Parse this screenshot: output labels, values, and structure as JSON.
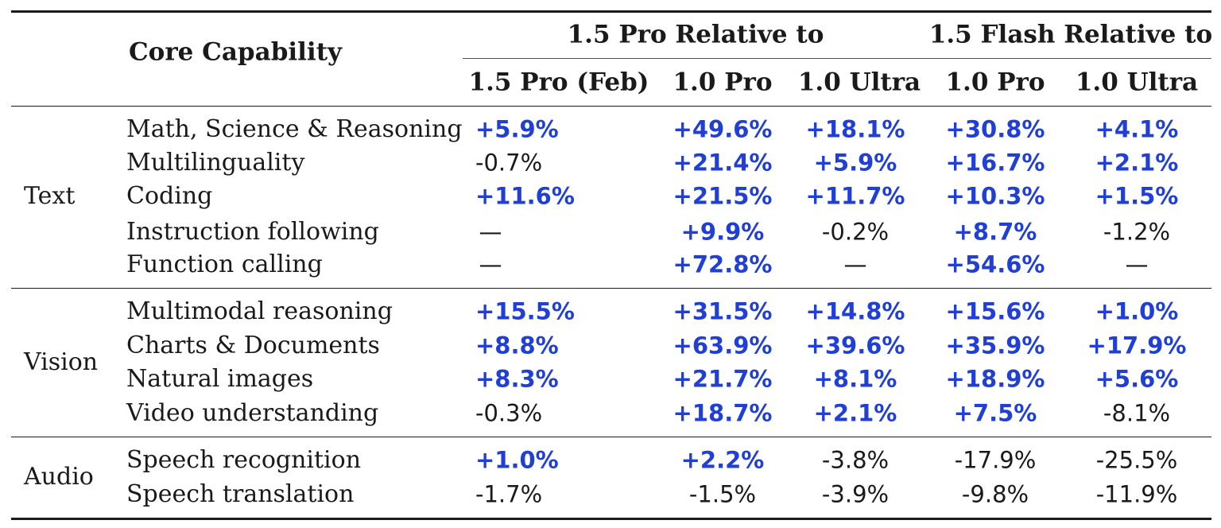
{
  "header": {
    "core_capability": "Core Capability",
    "group_pro": "1.5 Pro Relative to",
    "group_flash": "1.5 Flash Relative to",
    "columns": [
      "1.5 Pro (Feb)",
      "1.0 Pro",
      "1.0 Ultra",
      "1.0 Pro",
      "1.0 Ultra"
    ]
  },
  "colors": {
    "improvement": "#1f3fd6",
    "default": "#1a1a1a"
  },
  "groups": [
    {
      "category": "Text",
      "rows": [
        {
          "capability": "Math, Science & Reasoning",
          "values": [
            "+5.9%",
            "+49.6%",
            "+18.1%",
            "+30.8%",
            "+4.1%"
          ],
          "highlight": [
            true,
            true,
            true,
            true,
            true
          ]
        },
        {
          "capability": "Multilinguality",
          "values": [
            "-0.7%",
            "+21.4%",
            "+5.9%",
            "+16.7%",
            "+2.1%"
          ],
          "highlight": [
            false,
            true,
            true,
            true,
            true
          ]
        },
        {
          "capability": "Coding",
          "values": [
            "+11.6%",
            "+21.5%",
            "+11.7%",
            "+10.3%",
            "+1.5%"
          ],
          "highlight": [
            true,
            true,
            true,
            true,
            true
          ]
        },
        {
          "capability": "Instruction following",
          "values": [
            "—",
            "+9.9%",
            "-0.2%",
            "+8.7%",
            "-1.2%"
          ],
          "highlight": [
            false,
            true,
            false,
            true,
            false
          ]
        },
        {
          "capability": "Function calling",
          "values": [
            "—",
            "+72.8%",
            "—",
            "+54.6%",
            "—"
          ],
          "highlight": [
            false,
            true,
            false,
            true,
            false
          ]
        }
      ]
    },
    {
      "category": "Vision",
      "rows": [
        {
          "capability": "Multimodal reasoning",
          "values": [
            "+15.5%",
            "+31.5%",
            "+14.8%",
            "+15.6%",
            "+1.0%"
          ],
          "highlight": [
            true,
            true,
            true,
            true,
            true
          ]
        },
        {
          "capability": "Charts & Documents",
          "values": [
            "+8.8%",
            "+63.9%",
            "+39.6%",
            "+35.9%",
            "+17.9%"
          ],
          "highlight": [
            true,
            true,
            true,
            true,
            true
          ]
        },
        {
          "capability": "Natural images",
          "values": [
            "+8.3%",
            "+21.7%",
            "+8.1%",
            "+18.9%",
            "+5.6%"
          ],
          "highlight": [
            true,
            true,
            true,
            true,
            true
          ]
        },
        {
          "capability": "Video understanding",
          "values": [
            "-0.3%",
            "+18.7%",
            "+2.1%",
            "+7.5%",
            "-8.1%"
          ],
          "highlight": [
            false,
            true,
            true,
            true,
            false
          ]
        }
      ]
    },
    {
      "category": "Audio",
      "rows": [
        {
          "capability": "Speech recognition",
          "values": [
            "+1.0%",
            "+2.2%",
            "-3.8%",
            "-17.9%",
            "-25.5%"
          ],
          "highlight": [
            true,
            true,
            false,
            false,
            false
          ]
        },
        {
          "capability": "Speech translation",
          "values": [
            "-1.7%",
            "-1.5%",
            "-3.9%",
            "-9.8%",
            "-11.9%"
          ],
          "highlight": [
            false,
            false,
            false,
            false,
            false
          ]
        }
      ]
    }
  ]
}
